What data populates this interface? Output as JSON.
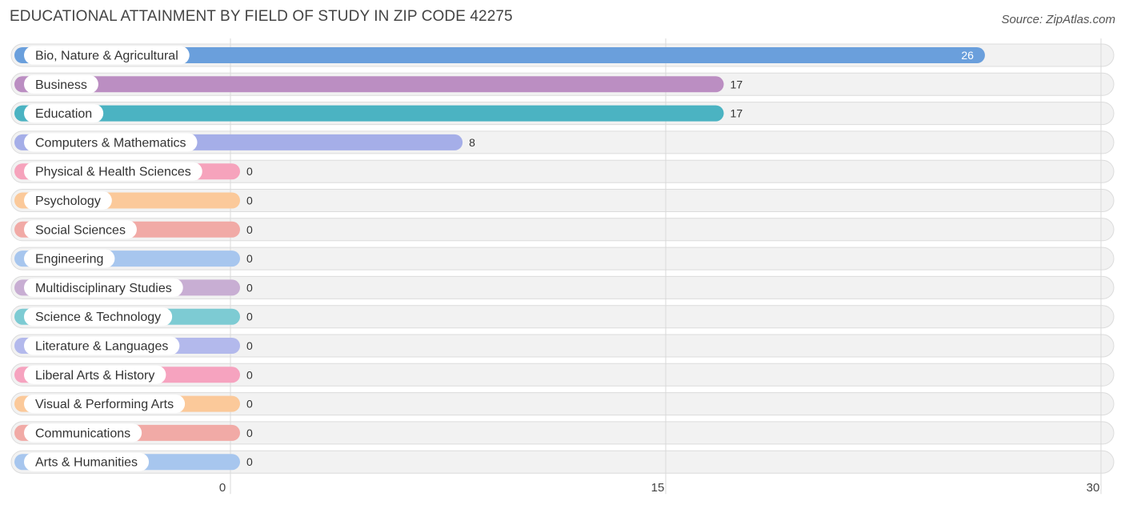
{
  "header": {
    "title": "EDUCATIONAL ATTAINMENT BY FIELD OF STUDY IN ZIP CODE 42275",
    "source": "Source: ZipAtlas.com"
  },
  "chart_data": {
    "type": "bar",
    "orientation": "horizontal",
    "title": "EDUCATIONAL ATTAINMENT BY FIELD OF STUDY IN ZIP CODE 42275",
    "categories": [
      "Bio, Nature & Agricultural",
      "Business",
      "Education",
      "Computers & Mathematics",
      "Physical & Health Sciences",
      "Psychology",
      "Social Sciences",
      "Engineering",
      "Multidisciplinary Studies",
      "Science & Technology",
      "Literature & Languages",
      "Liberal Arts & History",
      "Visual & Performing Arts",
      "Communications",
      "Arts & Humanities"
    ],
    "values": [
      26,
      17,
      17,
      8,
      0,
      0,
      0,
      0,
      0,
      0,
      0,
      0,
      0,
      0,
      0
    ],
    "value_labels": [
      "26",
      "17",
      "17",
      "8",
      "0",
      "0",
      "0",
      "0",
      "0",
      "0",
      "0",
      "0",
      "0",
      "0",
      "0"
    ],
    "colors": [
      "#6a9fdc",
      "#bb8ec2",
      "#4bb3c2",
      "#a5aee8",
      "#f6a3bc",
      "#fbc99a",
      "#f1aaa6",
      "#a7c6ee",
      "#c8aed3",
      "#7dcbd3",
      "#b3b9ec",
      "#f6a3bf",
      "#fbc99a",
      "#f1aaa6",
      "#a7c6ee"
    ],
    "xlim": [
      0,
      30
    ],
    "xticks": [
      0,
      15,
      30
    ],
    "xtick_labels": [
      "0",
      "15",
      "30"
    ],
    "grid": true,
    "legend": "none"
  }
}
